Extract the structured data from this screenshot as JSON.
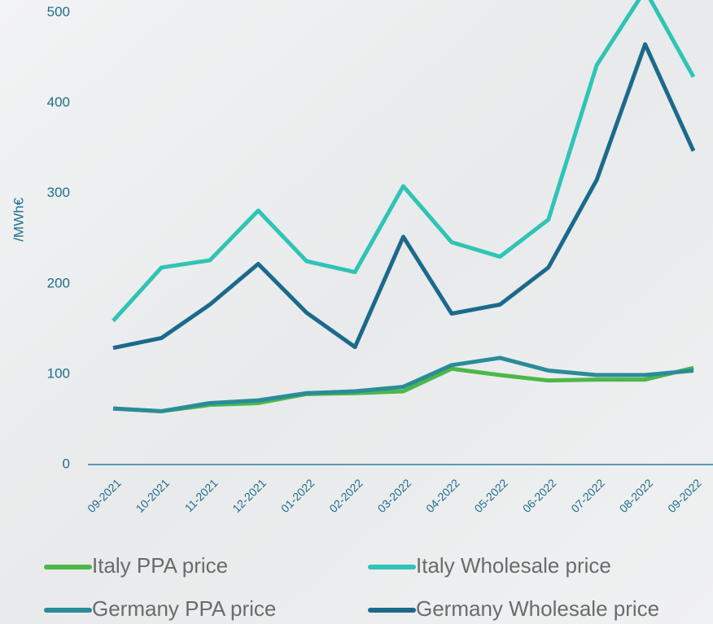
{
  "chart_data": {
    "type": "line",
    "y_label": "/MWh€",
    "categories": [
      "09-2021",
      "10-2021",
      "11-2021",
      "12-2021",
      "01-2022",
      "02-2022",
      "03-2022",
      "04-2022",
      "05-2022",
      "06-2022",
      "07-2022",
      "08-2022",
      "09-2022"
    ],
    "series": [
      {
        "name": "Italy PPA price",
        "color": "#4cb848",
        "values": [
          62,
          59,
          66,
          68,
          78,
          79,
          81,
          106,
          99,
          93,
          94,
          94,
          107
        ]
      },
      {
        "name": "Italy Wholesale price",
        "color": "#2ec4b6",
        "values": [
          159,
          218,
          226,
          281,
          225,
          213,
          308,
          246,
          230,
          271,
          442,
          525,
          429
        ]
      },
      {
        "name": "Germany PPA price",
        "color": "#2a8c99",
        "values": [
          62,
          59,
          68,
          71,
          79,
          81,
          86,
          110,
          118,
          104,
          99,
          99,
          104
        ]
      },
      {
        "name": "Germany Wholesale price",
        "color": "#1b6a8c",
        "values": [
          129,
          140,
          177,
          222,
          168,
          130,
          252,
          167,
          177,
          218,
          315,
          465,
          347
        ]
      }
    ],
    "ylim": [
      0,
      514
    ],
    "yticks": [
      0,
      100,
      200,
      300,
      400,
      500
    ],
    "legend_position": "bottom"
  }
}
